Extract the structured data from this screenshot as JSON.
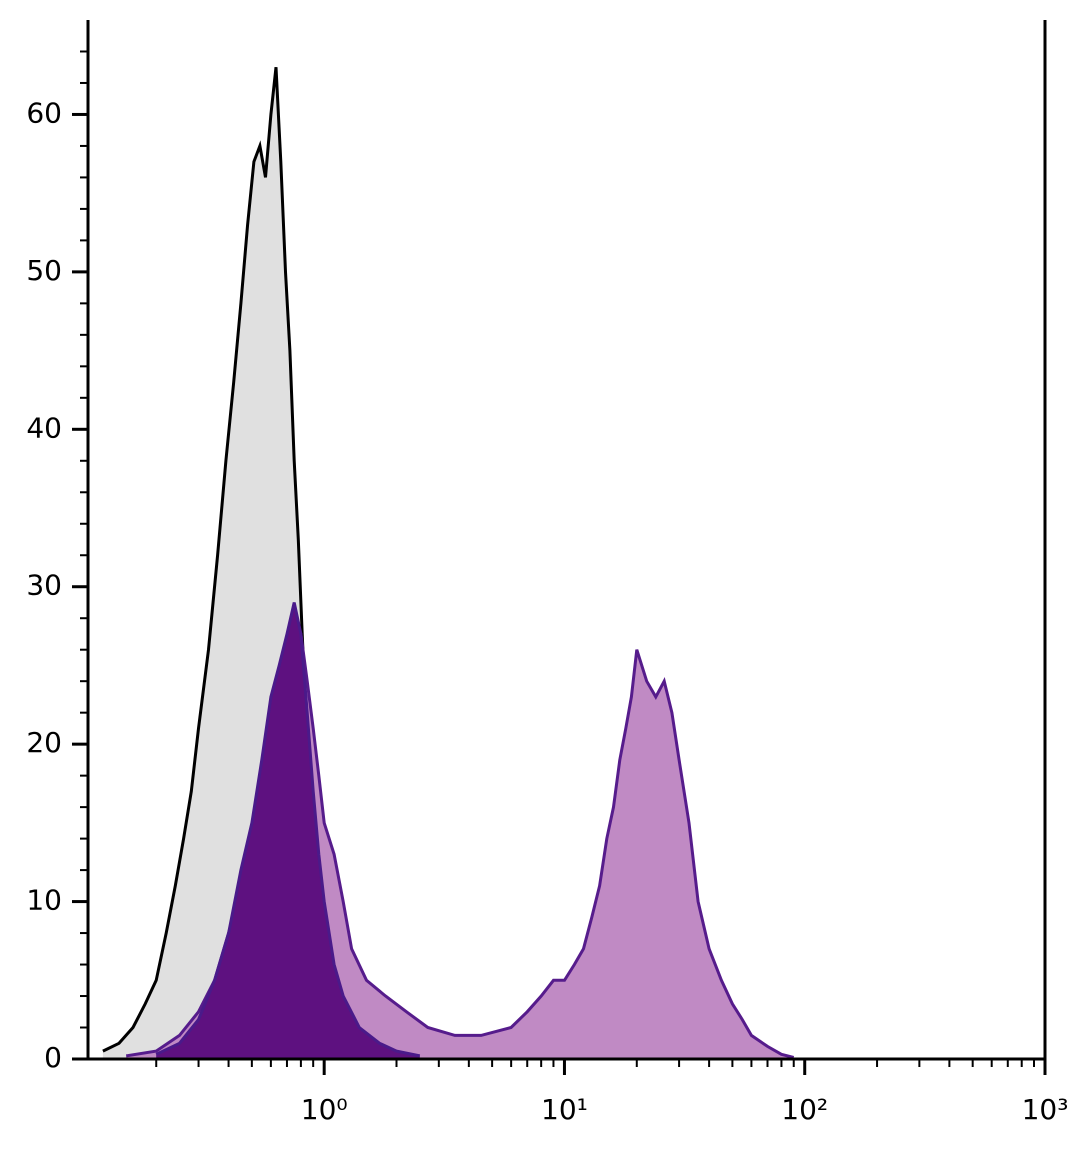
{
  "chart_data": {
    "type": "area",
    "xscale": "log",
    "xlim": [
      0.104,
      1000
    ],
    "ylim": [
      0,
      66
    ],
    "xticks": [
      {
        "value": 1,
        "label": "10⁰"
      },
      {
        "value": 10,
        "label": "10¹"
      },
      {
        "value": 100,
        "label": "10²"
      },
      {
        "value": 1000,
        "label": "10³"
      }
    ],
    "xminorticks": [
      0.2,
      0.3,
      0.4,
      0.5,
      0.6,
      0.7,
      0.8,
      0.9,
      2,
      3,
      4,
      5,
      6,
      7,
      8,
      9,
      20,
      30,
      40,
      50,
      60,
      70,
      80,
      90,
      200,
      300,
      400,
      500,
      600,
      700,
      800,
      900
    ],
    "yticks": [
      0,
      10,
      20,
      30,
      40,
      50,
      60
    ],
    "yminorticks": [
      2,
      4,
      6,
      8,
      12,
      14,
      16,
      18,
      22,
      24,
      26,
      28,
      32,
      34,
      36,
      38,
      42,
      44,
      46,
      48,
      52,
      54,
      56,
      58,
      62,
      64
    ],
    "series": [
      {
        "color": "#e0e0e0",
        "stroke": "#000000",
        "x": [
          0.12,
          0.14,
          0.16,
          0.18,
          0.2,
          0.22,
          0.24,
          0.26,
          0.28,
          0.3,
          0.33,
          0.36,
          0.39,
          0.42,
          0.45,
          0.48,
          0.51,
          0.54,
          0.57,
          0.6,
          0.63,
          0.66,
          0.69,
          0.72,
          0.75,
          0.78,
          0.81,
          0.85,
          0.9,
          0.95,
          1.0,
          1.1,
          1.2,
          1.4,
          1.7,
          2.0
        ],
        "values": [
          0.5,
          1,
          2,
          3.5,
          5,
          8,
          11,
          14,
          17,
          21,
          26,
          32,
          38,
          43,
          48,
          53,
          57,
          58,
          56,
          60,
          63,
          57,
          50,
          45,
          38,
          33,
          27,
          20,
          14,
          9,
          6,
          3.5,
          2.2,
          1.2,
          0.6,
          0.2
        ]
      },
      {
        "color": "#c08ac4",
        "stroke": "#561c8c",
        "x": [
          0.15,
          0.2,
          0.25,
          0.3,
          0.35,
          0.4,
          0.45,
          0.5,
          0.55,
          0.6,
          0.65,
          0.7,
          0.75,
          0.8,
          0.85,
          0.9,
          0.95,
          1.0,
          1.1,
          1.2,
          1.3,
          1.5,
          1.8,
          2.2,
          2.7,
          3.5,
          4.5,
          6,
          7,
          8,
          9,
          10,
          11,
          12,
          13,
          14,
          15,
          16,
          17,
          18,
          19,
          20,
          22,
          24,
          26,
          28,
          30,
          33,
          36,
          40,
          45,
          50,
          55,
          60,
          70,
          80,
          90
        ],
        "values": [
          0.2,
          0.5,
          1.5,
          3,
          5,
          8,
          11,
          14,
          17,
          20,
          23,
          26,
          28,
          27,
          24,
          21,
          18,
          15,
          13,
          10,
          7,
          5,
          4,
          3,
          2,
          1.5,
          1.5,
          2,
          3,
          4,
          5,
          5,
          6,
          7,
          9,
          11,
          14,
          16,
          19,
          21,
          23,
          26,
          24,
          23,
          24,
          22,
          19,
          15,
          10,
          7,
          5,
          3.5,
          2.5,
          1.5,
          0.8,
          0.3,
          0.1
        ]
      },
      {
        "color": "#5e1180",
        "stroke": "#4a1a8a",
        "x": [
          0.2,
          0.25,
          0.3,
          0.35,
          0.4,
          0.45,
          0.5,
          0.55,
          0.6,
          0.65,
          0.7,
          0.75,
          0.8,
          0.85,
          0.9,
          0.95,
          1.0,
          1.1,
          1.2,
          1.4,
          1.7,
          2.0,
          2.5
        ],
        "values": [
          0.3,
          1,
          2.5,
          5,
          8,
          12,
          15,
          19,
          23,
          25,
          27,
          29,
          27,
          22,
          17,
          13,
          10,
          6,
          4,
          2,
          1,
          0.5,
          0.2
        ]
      }
    ]
  }
}
